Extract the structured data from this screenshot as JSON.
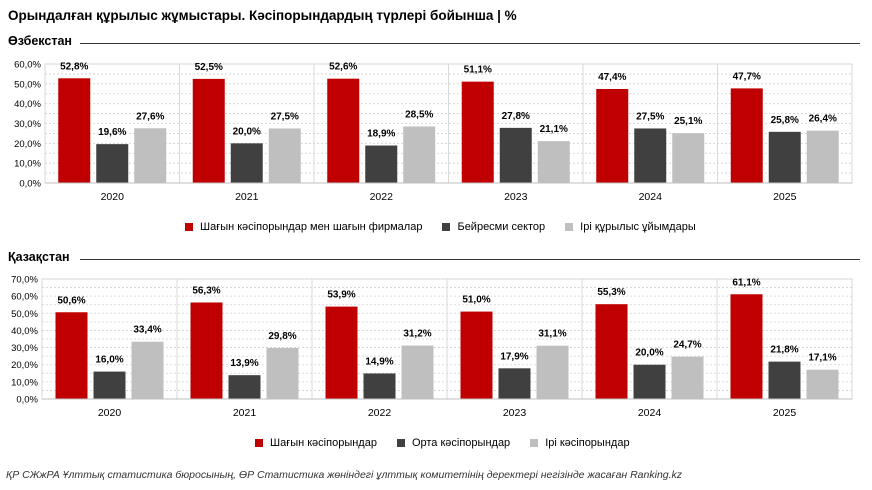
{
  "title": "Орындалған құрылыс жұмыстары. Кәсіпорындардың түрлері бойынша | %",
  "footer": "ҚР СЖжРА Ұлттық статистика бюросының, ӨР Статистика жөніндегі ұлттық комитетінің деректері негізінде жасаған Ranking.kz",
  "colors": {
    "red": "#C00000",
    "dark": "#404040",
    "light": "#BFBFBF"
  },
  "chart_data": [
    {
      "type": "bar",
      "title": "Өзбекстан",
      "categories": [
        "2020",
        "2021",
        "2022",
        "2023",
        "2024",
        "2025"
      ],
      "ylim": [
        0,
        60
      ],
      "yticks": [
        "0,0%",
        "10,0%",
        "20,0%",
        "30,0%",
        "40,0%",
        "50,0%",
        "60,0%"
      ],
      "grid": true,
      "legend_position": "bottom",
      "series": [
        {
          "name": "Шағын кәсіпорындар мен шағын фирмалар",
          "color": "#C00000",
          "values": [
            52.8,
            52.5,
            52.6,
            51.1,
            47.4,
            47.7
          ],
          "labels": [
            "52,8%",
            "52,5%",
            "52,6%",
            "51,1%",
            "47,4%",
            "47,7%"
          ]
        },
        {
          "name": "Бейресми сектор",
          "color": "#404040",
          "values": [
            19.6,
            20.0,
            18.9,
            27.8,
            27.5,
            25.8
          ],
          "labels": [
            "19,6%",
            "20,0%",
            "18,9%",
            "27,8%",
            "27,5%",
            "25,8%"
          ]
        },
        {
          "name": "Ірі құрылыс ұйымдары",
          "color": "#BFBFBF",
          "values": [
            27.6,
            27.5,
            28.5,
            21.1,
            25.1,
            26.4
          ],
          "labels": [
            "27,6%",
            "27,5%",
            "28,5%",
            "21,1%",
            "25,1%",
            "26,4%"
          ]
        }
      ]
    },
    {
      "type": "bar",
      "title": "Қазақстан",
      "categories": [
        "2020",
        "2021",
        "2022",
        "2023",
        "2024",
        "2025"
      ],
      "ylim": [
        0,
        70
      ],
      "yticks": [
        "0,0%",
        "10,0%",
        "20,0%",
        "30,0%",
        "40,0%",
        "50,0%",
        "60,0%",
        "70,0%"
      ],
      "grid": true,
      "legend_position": "bottom",
      "series": [
        {
          "name": "Шағын кәсіпорындар",
          "color": "#C00000",
          "values": [
            50.6,
            56.3,
            53.9,
            51.0,
            55.3,
            61.1
          ],
          "labels": [
            "50,6%",
            "56,3%",
            "53,9%",
            "51,0%",
            "55,3%",
            "61,1%"
          ]
        },
        {
          "name": "Орта кәсіпорындар",
          "color": "#404040",
          "values": [
            16.0,
            13.9,
            14.9,
            17.9,
            20.0,
            21.8
          ],
          "labels": [
            "16,0%",
            "13,9%",
            "14,9%",
            "17,9%",
            "20,0%",
            "21,8%"
          ]
        },
        {
          "name": "Ірі кәсіпорындар",
          "color": "#BFBFBF",
          "values": [
            33.4,
            29.8,
            31.2,
            31.1,
            24.7,
            17.1
          ],
          "labels": [
            "33,4%",
            "29,8%",
            "31,2%",
            "31,1%",
            "24,7%",
            "17,1%"
          ]
        }
      ]
    }
  ]
}
